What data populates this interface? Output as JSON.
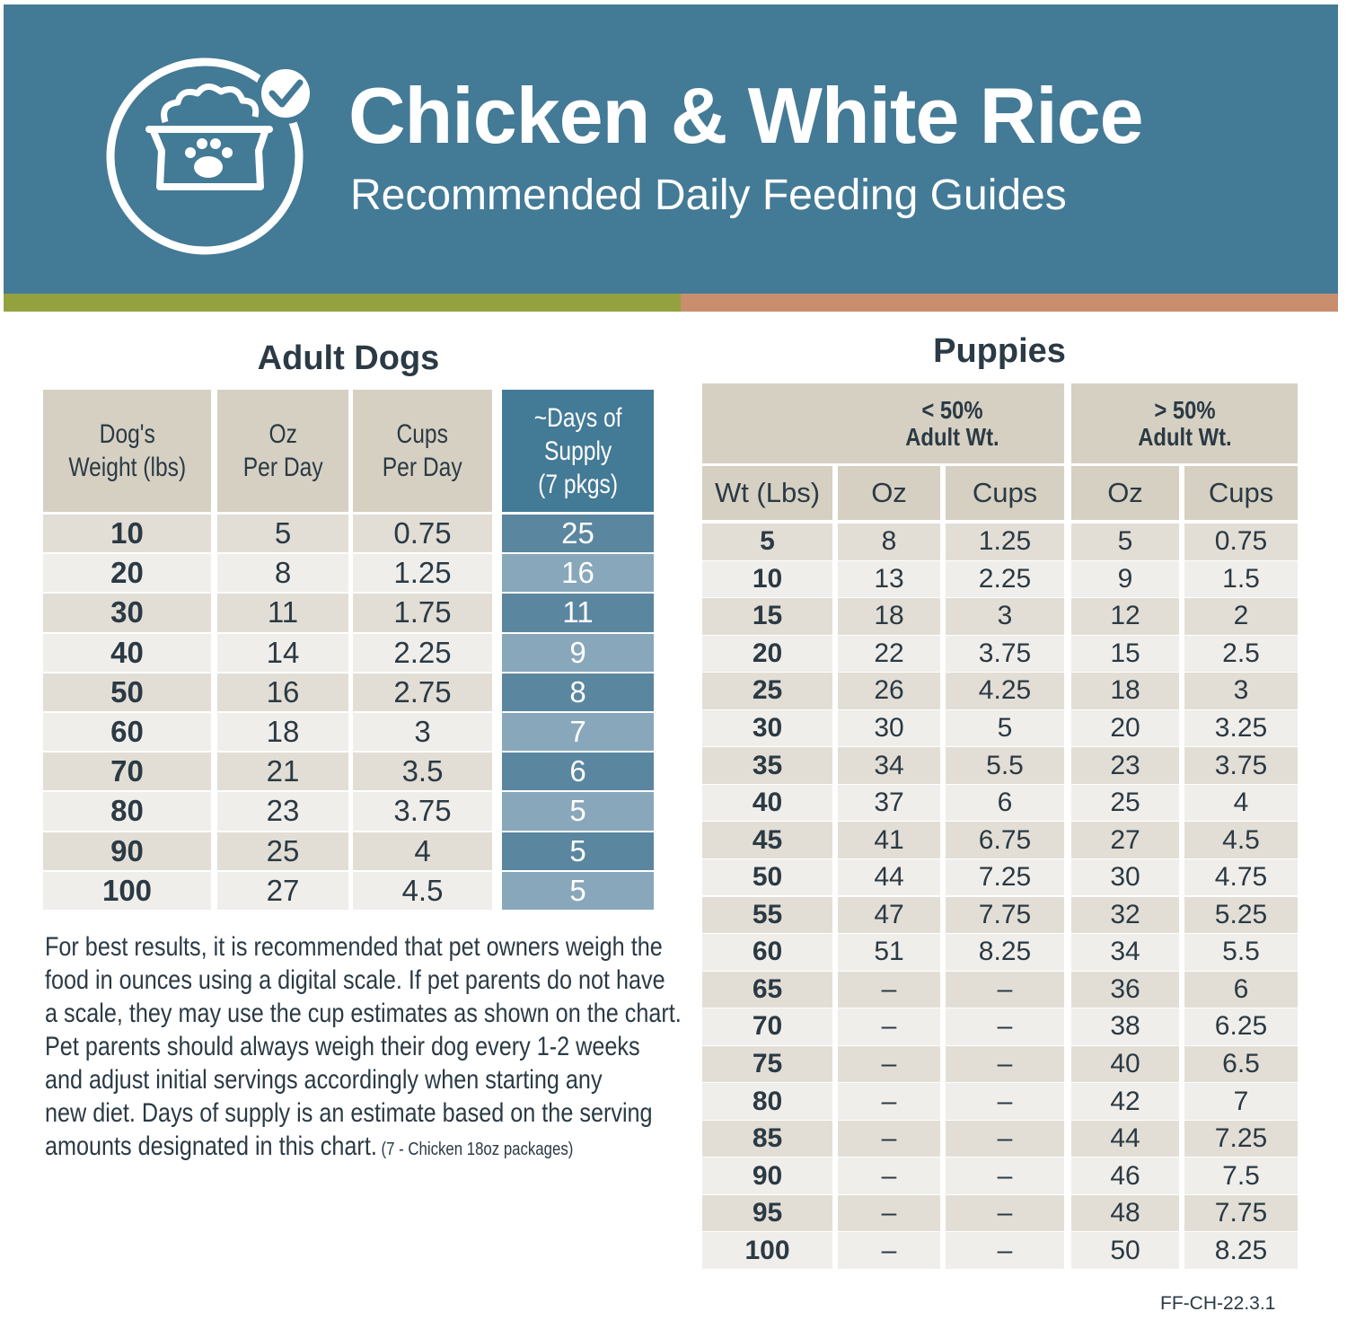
{
  "header": {
    "title": "Chicken & White Rice",
    "subtitle": "Recommended Daily Feeding Guides",
    "icon": "dog-food-bowl-check-icon"
  },
  "colors": {
    "header_blue": "#437a96",
    "stripe_green": "#93a23f",
    "stripe_orange": "#c88e6e",
    "header_cell": "#d6d0c3"
  },
  "adult": {
    "title": "Adult Dogs",
    "columns": [
      "Dog's\nWeight (lbs)",
      "Oz\nPer Day",
      "Cups\nPer Day",
      "~Days of\nSupply\n(7 pkgs)"
    ],
    "rows": [
      [
        "10",
        "5",
        "0.75",
        "25"
      ],
      [
        "20",
        "8",
        "1.25",
        "16"
      ],
      [
        "30",
        "11",
        "1.75",
        "11"
      ],
      [
        "40",
        "14",
        "2.25",
        "9"
      ],
      [
        "50",
        "16",
        "2.75",
        "8"
      ],
      [
        "60",
        "18",
        "3",
        "7"
      ],
      [
        "70",
        "21",
        "3.5",
        "6"
      ],
      [
        "80",
        "23",
        "3.75",
        "5"
      ],
      [
        "90",
        "25",
        "4",
        "5"
      ],
      [
        "100",
        "27",
        "4.5",
        "5"
      ]
    ]
  },
  "note": {
    "lines": [
      "For best results, it is recommended that pet owners weigh the",
      "food in ounces using a digital scale. If pet parents do not have",
      "a scale, they may use the cup estimates as shown on the chart.",
      "Pet parents should always weigh their dog every 1-2 weeks",
      "and adjust initial servings accordingly when starting any",
      "new diet. Days of supply is an estimate based on the serving",
      "amounts designated in this chart."
    ],
    "small": "(7 - Chicken 18oz packages)"
  },
  "puppies": {
    "title": "Puppies",
    "groups": [
      "< 50%\nAdult Wt.",
      "> 50%\nAdult Wt."
    ],
    "columns": [
      "Wt (Lbs)",
      "Oz",
      "Cups",
      "Oz",
      "Cups"
    ],
    "rows": [
      [
        "5",
        "8",
        "1.25",
        "5",
        "0.75"
      ],
      [
        "10",
        "13",
        "2.25",
        "9",
        "1.5"
      ],
      [
        "15",
        "18",
        "3",
        "12",
        "2"
      ],
      [
        "20",
        "22",
        "3.75",
        "15",
        "2.5"
      ],
      [
        "25",
        "26",
        "4.25",
        "18",
        "3"
      ],
      [
        "30",
        "30",
        "5",
        "20",
        "3.25"
      ],
      [
        "35",
        "34",
        "5.5",
        "23",
        "3.75"
      ],
      [
        "40",
        "37",
        "6",
        "25",
        "4"
      ],
      [
        "45",
        "41",
        "6.75",
        "27",
        "4.5"
      ],
      [
        "50",
        "44",
        "7.25",
        "30",
        "4.75"
      ],
      [
        "55",
        "47",
        "7.75",
        "32",
        "5.25"
      ],
      [
        "60",
        "51",
        "8.25",
        "34",
        "5.5"
      ],
      [
        "65",
        "–",
        "–",
        "36",
        "6"
      ],
      [
        "70",
        "–",
        "–",
        "38",
        "6.25"
      ],
      [
        "75",
        "–",
        "–",
        "40",
        "6.5"
      ],
      [
        "80",
        "–",
        "–",
        "42",
        "7"
      ],
      [
        "85",
        "–",
        "–",
        "44",
        "7.25"
      ],
      [
        "90",
        "–",
        "–",
        "46",
        "7.5"
      ],
      [
        "95",
        "–",
        "–",
        "48",
        "7.75"
      ],
      [
        "100",
        "–",
        "–",
        "50",
        "8.25"
      ]
    ]
  },
  "footer": {
    "code": "FF-CH-22.3.1"
  }
}
